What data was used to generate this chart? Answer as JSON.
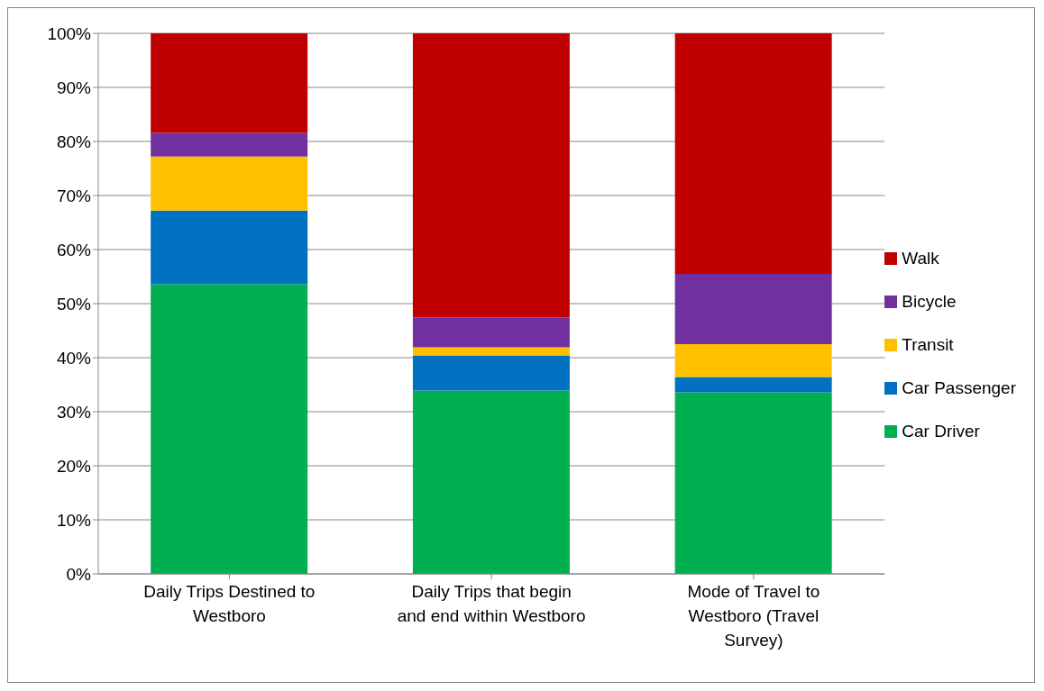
{
  "chart_data": {
    "type": "bar",
    "stacked": true,
    "categories": [
      "Daily Trips Destined to Westboro",
      "Daily Trips that begin and end within Westboro",
      "Mode of Travel to Westboro (Travel Survey)"
    ],
    "series": [
      {
        "name": "Car Driver",
        "color": "#00b050",
        "values": [
          53.6,
          33.9,
          33.6
        ]
      },
      {
        "name": "Car Passenger",
        "color": "#0070c0",
        "values": [
          13.6,
          6.5,
          2.8
        ]
      },
      {
        "name": "Transit",
        "color": "#ffc000",
        "values": [
          10.0,
          1.5,
          6.1
        ]
      },
      {
        "name": "Bicycle",
        "color": "#7030a0",
        "values": [
          4.4,
          5.5,
          13.0
        ]
      },
      {
        "name": "Walk",
        "color": "#c00000",
        "values": [
          18.4,
          52.6,
          44.5
        ]
      }
    ],
    "ylim": [
      0,
      100
    ],
    "yticks": [
      {
        "value": 0,
        "label": "0%"
      },
      {
        "value": 10,
        "label": "10%"
      },
      {
        "value": 20,
        "label": "20%"
      },
      {
        "value": 30,
        "label": "30%"
      },
      {
        "value": 40,
        "label": "40%"
      },
      {
        "value": 50,
        "label": "50%"
      },
      {
        "value": 60,
        "label": "60%"
      },
      {
        "value": 70,
        "label": "70%"
      },
      {
        "value": 80,
        "label": "80%"
      },
      {
        "value": 90,
        "label": "90%"
      },
      {
        "value": 100,
        "label": "100%"
      }
    ],
    "grid": "y",
    "legend": "right"
  }
}
